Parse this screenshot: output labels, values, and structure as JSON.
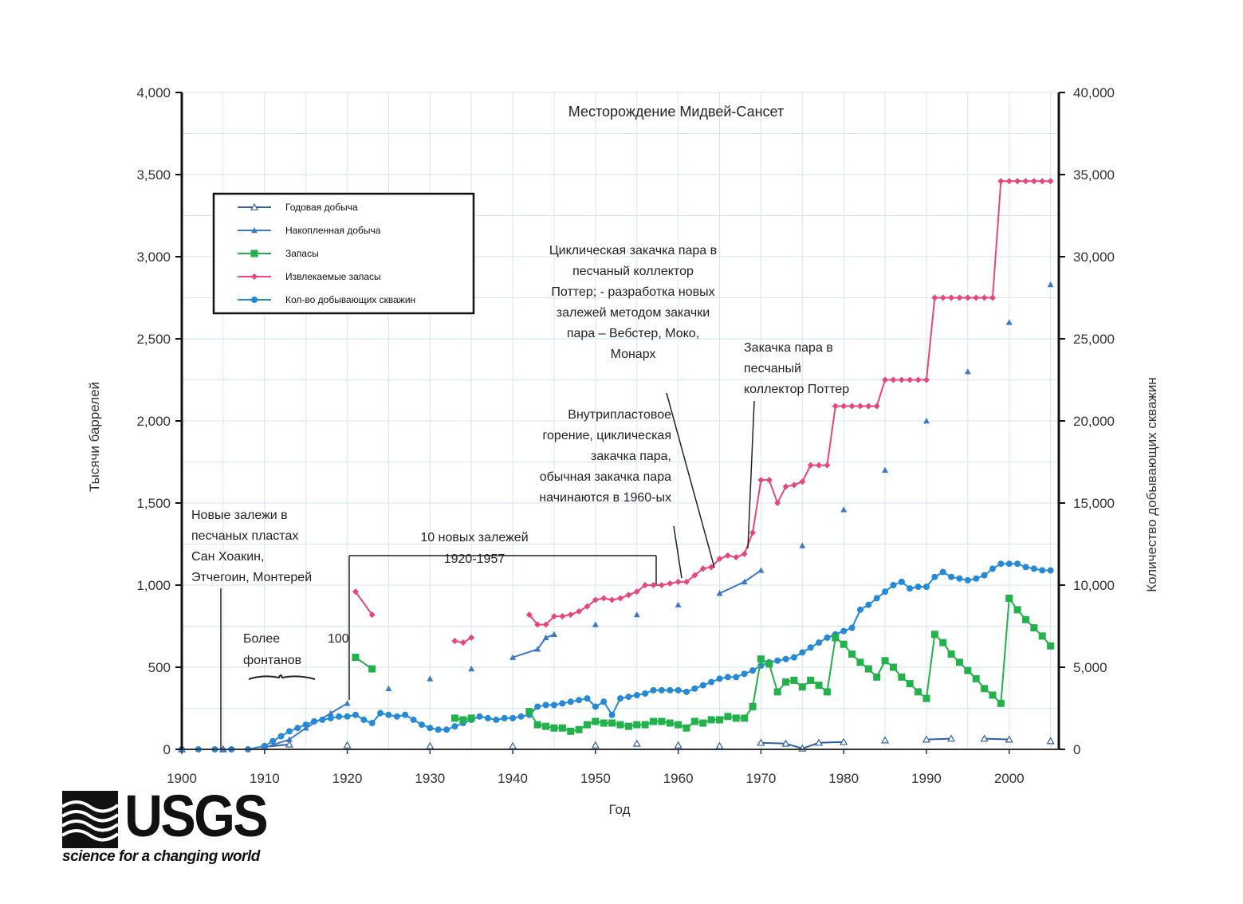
{
  "chart_data": {
    "type": "line",
    "title": "Месторождение Мидвей-Сансет",
    "xlabel": "Год",
    "ylabel_left": "Тысячи баррелей",
    "ylabel_right": "Количество добывающих скважин",
    "xlim": [
      1900,
      2006
    ],
    "ylim_left": [
      0,
      4000
    ],
    "ylim_right": [
      0,
      40000
    ],
    "x_ticks": [
      "1900",
      "1910",
      "1920",
      "1930",
      "1940",
      "1950",
      "1960",
      "1970",
      "1980",
      "1990",
      "2000"
    ],
    "y_ticks_left": [
      "0",
      "500",
      "1,000",
      "1,500",
      "2,000",
      "2,500",
      "3,000",
      "3,500",
      "4,000"
    ],
    "y_ticks_right": [
      "0",
      "5,000",
      "10,000",
      "15,000",
      "20,000",
      "25,000",
      "30,000",
      "35,000",
      "40,000"
    ],
    "grid": true,
    "legend_position": "top-left",
    "series": [
      {
        "name": "Годовая добыча",
        "axis": "left",
        "color": "#2e5fa8",
        "marker": "triangle-open",
        "x": [
          1900,
          1905,
          1910,
          1913,
          1920,
          1930,
          1940,
          1950,
          1955,
          1960,
          1965,
          1970,
          1973,
          1975,
          1977,
          1980,
          1985,
          1990,
          1993,
          1997,
          2000,
          2005
        ],
        "y": [
          0,
          0,
          15,
          30,
          25,
          20,
          20,
          25,
          35,
          25,
          20,
          40,
          35,
          5,
          40,
          45,
          55,
          60,
          65,
          65,
          60,
          50
        ]
      },
      {
        "name": "Накопленная добыча",
        "axis": "left",
        "color": "#3a78c8",
        "marker": "triangle",
        "x": [
          1900,
          1905,
          1910,
          1913,
          1915,
          1918,
          1920,
          1925,
          1930,
          1935,
          1940,
          1943,
          1944,
          1945,
          1950,
          1955,
          1960,
          1965,
          1968,
          1970,
          1975,
          1980,
          1985,
          1990,
          1995,
          2000,
          2005
        ],
        "y": [
          0,
          0,
          10,
          60,
          130,
          220,
          280,
          370,
          430,
          490,
          560,
          610,
          680,
          700,
          760,
          820,
          880,
          950,
          1020,
          1090,
          1240,
          1460,
          1700,
          2000,
          2300,
          2600,
          2830
        ]
      },
      {
        "name": "Запасы",
        "axis": "left",
        "color": "#21b24a",
        "marker": "square",
        "x": [
          1921,
          1923,
          1933,
          1934,
          1935,
          1942,
          1943,
          1944,
          1945,
          1946,
          1947,
          1948,
          1949,
          1950,
          1951,
          1952,
          1953,
          1954,
          1955,
          1956,
          1957,
          1958,
          1959,
          1960,
          1961,
          1962,
          1963,
          1964,
          1965,
          1966,
          1967,
          1968,
          1969,
          1970,
          1971,
          1972,
          1973,
          1974,
          1975,
          1976,
          1977,
          1978,
          1979,
          1980,
          1981,
          1982,
          1983,
          1984,
          1985,
          1986,
          1987,
          1988,
          1989,
          1990,
          1991,
          1992,
          1993,
          1994,
          1995,
          1996,
          1997,
          1998,
          1999,
          2000,
          2001,
          2002,
          2003,
          2004,
          2005
        ],
        "y": [
          560,
          490,
          190,
          180,
          190,
          230,
          150,
          140,
          130,
          130,
          110,
          120,
          150,
          170,
          160,
          160,
          150,
          140,
          150,
          150,
          170,
          170,
          160,
          150,
          130,
          170,
          160,
          180,
          180,
          200,
          190,
          190,
          260,
          550,
          520,
          350,
          410,
          420,
          380,
          420,
          390,
          350,
          680,
          640,
          580,
          530,
          490,
          440,
          540,
          500,
          440,
          400,
          350,
          310,
          700,
          650,
          580,
          530,
          480,
          430,
          370,
          330,
          280,
          920,
          850,
          790,
          740,
          690,
          630
        ]
      },
      {
        "name": "Извлекаемые запасы",
        "axis": "left",
        "color": "#e8457a",
        "marker": "diamond",
        "x": [
          1921,
          1923,
          1933,
          1934,
          1935,
          1942,
          1943,
          1944,
          1945,
          1946,
          1947,
          1948,
          1949,
          1950,
          1951,
          1952,
          1953,
          1954,
          1955,
          1956,
          1957,
          1958,
          1959,
          1960,
          1961,
          1962,
          1963,
          1964,
          1965,
          1966,
          1967,
          1968,
          1969,
          1970,
          1971,
          1972,
          1973,
          1974,
          1975,
          1976,
          1977,
          1978,
          1979,
          1980,
          1981,
          1982,
          1983,
          1984,
          1985,
          1986,
          1987,
          1988,
          1989,
          1990,
          1991,
          1992,
          1993,
          1994,
          1995,
          1996,
          1997,
          1998,
          1999,
          2000,
          2001,
          2002,
          2003,
          2004,
          2005
        ],
        "y": [
          960,
          820,
          660,
          650,
          680,
          820,
          760,
          760,
          810,
          810,
          820,
          840,
          870,
          910,
          920,
          910,
          920,
          940,
          960,
          1000,
          1000,
          1000,
          1010,
          1020,
          1020,
          1060,
          1100,
          1110,
          1160,
          1180,
          1170,
          1190,
          1320,
          1640,
          1640,
          1500,
          1600,
          1610,
          1630,
          1730,
          1730,
          1730,
          2090,
          2090,
          2090,
          2090,
          2090,
          2090,
          2250,
          2250,
          2250,
          2250,
          2250,
          2250,
          2750,
          2750,
          2750,
          2750,
          2750,
          2750,
          2750,
          2750,
          3460,
          3460,
          3460,
          3460,
          3460,
          3460,
          3460
        ]
      },
      {
        "name": "Кол-во добывающих скважин",
        "axis": "right",
        "color": "#2489d6",
        "marker": "circle",
        "x": [
          1900,
          1902,
          1904,
          1906,
          1908,
          1910,
          1911,
          1912,
          1913,
          1914,
          1915,
          1916,
          1917,
          1918,
          1919,
          1920,
          1921,
          1922,
          1923,
          1924,
          1925,
          1926,
          1927,
          1928,
          1929,
          1930,
          1931,
          1932,
          1933,
          1934,
          1935,
          1936,
          1937,
          1938,
          1939,
          1940,
          1941,
          1942,
          1943,
          1944,
          1945,
          1946,
          1947,
          1948,
          1949,
          1950,
          1951,
          1952,
          1953,
          1954,
          1955,
          1956,
          1957,
          1958,
          1959,
          1960,
          1961,
          1962,
          1963,
          1964,
          1965,
          1966,
          1967,
          1968,
          1969,
          1970,
          1971,
          1972,
          1973,
          1974,
          1975,
          1976,
          1977,
          1978,
          1979,
          1980,
          1981,
          1982,
          1983,
          1984,
          1985,
          1986,
          1987,
          1988,
          1989,
          1990,
          1991,
          1992,
          1993,
          1994,
          1995,
          1996,
          1997,
          1998,
          1999,
          2000,
          2001,
          2002,
          2003,
          2004,
          2005
        ],
        "y": [
          0,
          0,
          0,
          0,
          0,
          200,
          500,
          800,
          1100,
          1300,
          1500,
          1700,
          1800,
          1900,
          2000,
          2000,
          2100,
          1800,
          1600,
          2200,
          2100,
          2000,
          2100,
          1800,
          1500,
          1300,
          1200,
          1200,
          1400,
          1600,
          1800,
          2000,
          1900,
          1800,
          1900,
          1900,
          2000,
          2100,
          2600,
          2700,
          2700,
          2800,
          2900,
          3000,
          3100,
          2600,
          2900,
          2100,
          3100,
          3200,
          3300,
          3400,
          3600,
          3600,
          3600,
          3600,
          3500,
          3700,
          3900,
          4100,
          4300,
          4400,
          4400,
          4600,
          4800,
          5100,
          5300,
          5400,
          5500,
          5600,
          5900,
          6200,
          6500,
          6800,
          7000,
          7200,
          7400,
          8500,
          8800,
          9200,
          9600,
          10000,
          10200,
          9800,
          9900,
          9900,
          10500,
          10800,
          10500,
          10400,
          10300,
          10400,
          10600,
          11000,
          11300,
          11300,
          11300,
          11100,
          11000,
          10900,
          10900
        ]
      }
    ],
    "annotations": [
      {
        "lines": [
          "Новые залежи в",
          "песчаных пластах",
          "Сан Хоакин,",
          "Этчегоин, Монтерей"
        ]
      },
      {
        "lines": [
          "Более",
          "фонтанов"
        ]
      },
      {
        "lines": [
          "100"
        ]
      },
      {
        "lines": [
          "10 новых залежей",
          "1920-1957"
        ]
      },
      {
        "lines": [
          "Циклическая закачка пара в",
          "песчаный коллектор",
          "Поттер; - разработка новых",
          "залежей методом закачки",
          "пара – Вебстер, Моко,",
          "Монарх"
        ]
      },
      {
        "lines": [
          "Внутрипластовое",
          "горение, циклическая",
          "закачка пара,",
          "обычная закачка пара",
          "начинаются в 1960-ых"
        ]
      },
      {
        "lines": [
          "Закачка пара в",
          "песчаный",
          "коллектор Поттер"
        ]
      }
    ]
  },
  "logo": {
    "wordmark": "USGS",
    "tagline": "science for a changing world"
  }
}
